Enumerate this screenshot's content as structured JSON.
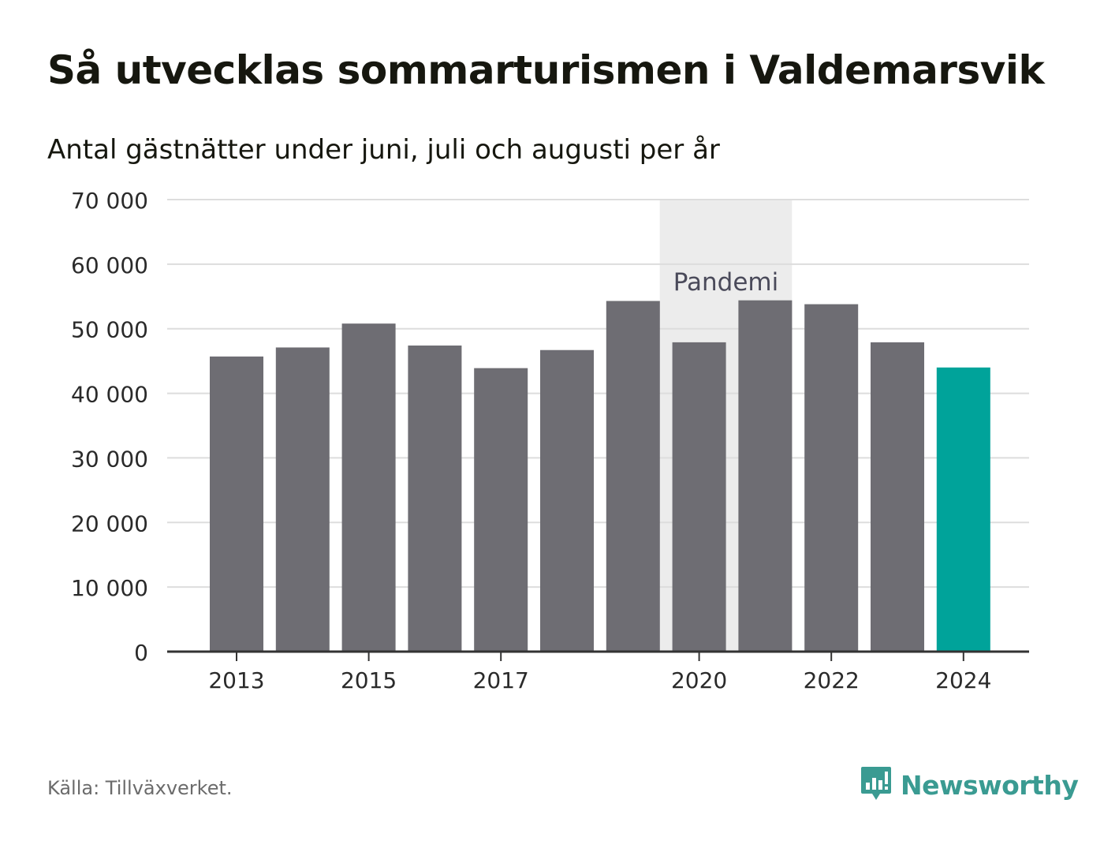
{
  "header": {
    "title": "Så utvecklas sommarturismen i Valdemarsvik",
    "subtitle": "Antal gästnätter under juni, juli och augusti per år"
  },
  "footer": {
    "source": "Källa: Tillväxverket.",
    "brand": "Newsworthy"
  },
  "colors": {
    "bar": "#6e6d73",
    "highlight": "#00a39a",
    "pandemic_band": "#ececec",
    "grid": "#dddddd",
    "axis": "#333333",
    "brand": "#3a9b92"
  },
  "chart_data": {
    "type": "bar",
    "categories": [
      "2013",
      "2014",
      "2015",
      "2016",
      "2017",
      "2018",
      "2019",
      "2020",
      "2021",
      "2022",
      "2023",
      "2024"
    ],
    "values": [
      45700,
      47100,
      50800,
      47400,
      43900,
      46700,
      54300,
      47900,
      54400,
      53800,
      47900,
      44000
    ],
    "highlight_index": 11,
    "x_tick_labels": [
      "2013",
      "2015",
      "2017",
      "2020",
      "2022",
      "2024"
    ],
    "ylim": [
      0,
      70000
    ],
    "y_ticks": [
      0,
      10000,
      20000,
      30000,
      40000,
      50000,
      60000,
      70000
    ],
    "y_tick_labels": [
      "0",
      "10 000",
      "20 000",
      "30 000",
      "40 000",
      "50 000",
      "60 000",
      "70 000"
    ],
    "annotation": {
      "label": "Pandemi",
      "from_category": "2020",
      "to_category": "2021"
    },
    "grid": true,
    "legend": "none"
  }
}
